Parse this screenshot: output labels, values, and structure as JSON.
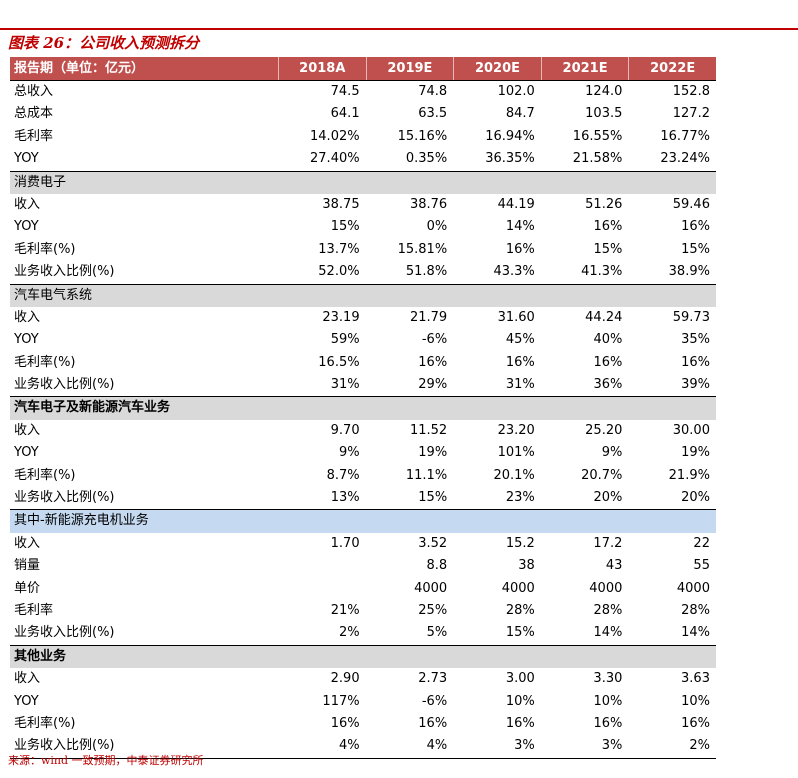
{
  "figure": {
    "title": "图表 26：公司收入预测拆分",
    "source": "来源：wind 一致预期，中泰证券研究所"
  },
  "table": {
    "header": [
      "报告期（单位：亿元）",
      "2018A",
      "2019E",
      "2020E",
      "2021E",
      "2022E"
    ],
    "rows": [
      {
        "type": "data",
        "cells": [
          "总收入",
          "74.5",
          "74.8",
          "102.0",
          "124.0",
          "152.8"
        ]
      },
      {
        "type": "data",
        "cells": [
          "总成本",
          "64.1",
          "63.5",
          "84.7",
          "103.5",
          "127.2"
        ]
      },
      {
        "type": "data",
        "cells": [
          "毛利率",
          "14.02%",
          "15.16%",
          "16.94%",
          "16.55%",
          "16.77%"
        ]
      },
      {
        "type": "data",
        "cells": [
          "YOY",
          "27.40%",
          "0.35%",
          "36.35%",
          "21.58%",
          "23.24%"
        ]
      },
      {
        "type": "section",
        "style": "grey",
        "cells": [
          "消费电子"
        ]
      },
      {
        "type": "data",
        "cells": [
          "收入",
          "38.75",
          "38.76",
          "44.19",
          "51.26",
          "59.46"
        ]
      },
      {
        "type": "data",
        "cells": [
          "YOY",
          "15%",
          "0%",
          "14%",
          "16%",
          "16%"
        ]
      },
      {
        "type": "data",
        "cells": [
          "毛利率(%)",
          "13.7%",
          "15.81%",
          "16%",
          "15%",
          "15%"
        ]
      },
      {
        "type": "data",
        "cells": [
          "业务收入比例(%)",
          "52.0%",
          "51.8%",
          "43.3%",
          "41.3%",
          "38.9%"
        ]
      },
      {
        "type": "section",
        "style": "grey",
        "cells": [
          "汽车电气系统"
        ]
      },
      {
        "type": "data",
        "cells": [
          "收入",
          "23.19",
          "21.79",
          "31.60",
          "44.24",
          "59.73"
        ]
      },
      {
        "type": "data",
        "cells": [
          "YOY",
          "59%",
          "-6%",
          "45%",
          "40%",
          "35%"
        ]
      },
      {
        "type": "data",
        "cells": [
          "毛利率(%)",
          "16.5%",
          "16%",
          "16%",
          "16%",
          "16%"
        ]
      },
      {
        "type": "data",
        "cells": [
          "业务收入比例(%)",
          "31%",
          "29%",
          "31%",
          "36%",
          "39%"
        ]
      },
      {
        "type": "section",
        "style": "grey-bold",
        "cells": [
          "汽车电子及新能源汽车业务"
        ]
      },
      {
        "type": "data",
        "cells": [
          "收入",
          "9.70",
          "11.52",
          "23.20",
          "25.20",
          "30.00"
        ]
      },
      {
        "type": "data",
        "cells": [
          "YOY",
          "9%",
          "19%",
          "101%",
          "9%",
          "19%"
        ]
      },
      {
        "type": "data",
        "cells": [
          "毛利率(%)",
          "8.7%",
          "11.1%",
          "20.1%",
          "20.7%",
          "21.9%"
        ]
      },
      {
        "type": "data",
        "cells": [
          "业务收入比例(%)",
          "13%",
          "15%",
          "23%",
          "20%",
          "20%"
        ]
      },
      {
        "type": "section",
        "style": "blue",
        "cells": [
          "其中-新能源充电机业务"
        ]
      },
      {
        "type": "data",
        "cells": [
          "收入",
          "1.70",
          "3.52",
          "15.2",
          "17.2",
          "22"
        ]
      },
      {
        "type": "data",
        "cells": [
          "销量",
          "",
          "8.8",
          "38",
          "43",
          "55"
        ]
      },
      {
        "type": "data",
        "cells": [
          "单价",
          "",
          "4000",
          "4000",
          "4000",
          "4000"
        ]
      },
      {
        "type": "data",
        "cells": [
          "毛利率",
          "21%",
          "25%",
          "28%",
          "28%",
          "28%"
        ]
      },
      {
        "type": "data",
        "cells": [
          "业务收入比例(%)",
          "2%",
          "5%",
          "15%",
          "14%",
          "14%"
        ]
      },
      {
        "type": "section",
        "style": "grey-bold",
        "cells": [
          "其他业务"
        ]
      },
      {
        "type": "data",
        "cells": [
          "收入",
          "2.90",
          "2.73",
          "3.00",
          "3.30",
          "3.63"
        ]
      },
      {
        "type": "data",
        "cells": [
          "YOY",
          "117%",
          "-6%",
          "10%",
          "10%",
          "10%"
        ]
      },
      {
        "type": "data",
        "cells": [
          "毛利率(%)",
          "16%",
          "16%",
          "16%",
          "16%",
          "16%"
        ]
      },
      {
        "type": "data",
        "cells": [
          "业务收入比例(%)",
          "4%",
          "4%",
          "3%",
          "3%",
          "2%"
        ]
      }
    ]
  },
  "colors": {
    "accent": "#c00000",
    "header_bg": "#c0504d",
    "section_grey": "#d9d9d9",
    "section_blue": "#c5d9f1"
  }
}
